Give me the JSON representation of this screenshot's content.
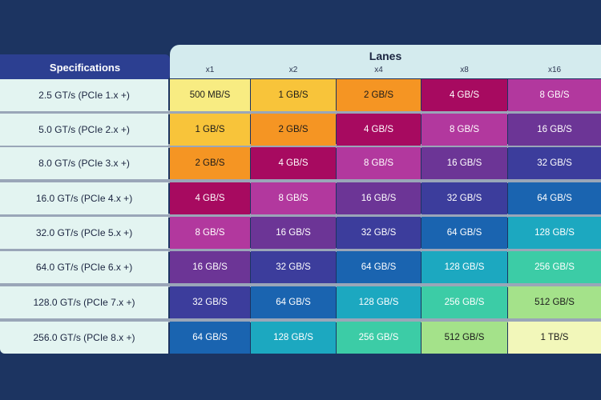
{
  "chart_data": {
    "type": "table",
    "title": "Lanes",
    "row_header": "Specifications",
    "columns": [
      "x1",
      "x2",
      "x4",
      "x8",
      "x16"
    ],
    "rows": [
      {
        "spec": "2.5 GT/s (PCIe 1.x +)",
        "values": [
          "500 MB/S",
          "1 GB/S",
          "2 GB/S",
          "4 GB/S",
          "8 GB/S"
        ]
      },
      {
        "spec": "5.0 GT/s (PCIe 2.x +)",
        "values": [
          "1 GB/S",
          "2 GB/S",
          "4 GB/S",
          "8 GB/S",
          "16 GB/S"
        ]
      },
      {
        "spec": "8.0 GT/s (PCIe 3.x +)",
        "values": [
          "2 GB/S",
          "4 GB/S",
          "8 GB/S",
          "16 GB/S",
          "32 GB/S"
        ]
      },
      {
        "spec": "16.0 GT/s (PCIe 4.x +)",
        "values": [
          "4 GB/S",
          "8 GB/S",
          "16 GB/S",
          "32 GB/S",
          "64 GB/S"
        ]
      },
      {
        "spec": "32.0 GT/s (PCIe 5.x +)",
        "values": [
          "8 GB/S",
          "16 GB/S",
          "32 GB/S",
          "64 GB/S",
          "128 GB/S"
        ]
      },
      {
        "spec": "64.0 GT/s (PCIe 6.x +)",
        "values": [
          "16 GB/S",
          "32 GB/S",
          "64 GB/S",
          "128 GB/S",
          "256 GB/S"
        ]
      },
      {
        "spec": "128.0 GT/s (PCIe 7.x +)",
        "values": [
          "32 GB/S",
          "64 GB/S",
          "128 GB/S",
          "256 GB/S",
          "512 GB/S"
        ]
      },
      {
        "spec": "256.0 GT/s (PCIe 8.x +)",
        "values": [
          "64 GB/S",
          "128 GB/S",
          "256 GB/S",
          "512 GB/S",
          "1 TB/S"
        ]
      }
    ],
    "value_colors": {
      "500 MB/S": "#f8ec82",
      "1 GB/S": "#f8c43a",
      "2 GB/S": "#f59523",
      "4 GB/S": "#a70a60",
      "8 GB/S": "#b2389e",
      "16 GB/S": "#6c3596",
      "32 GB/S": "#3c3d9c",
      "64 GB/S": "#1a64b0",
      "128 GB/S": "#1ca8c0",
      "256 GB/S": "#3ccca6",
      "512 GB/S": "#a4e28a",
      "1 TB/S": "#f2f7ba"
    },
    "dark_text_values": [
      "500 MB/S",
      "1 GB/S",
      "2 GB/S",
      "512 GB/S",
      "1 TB/S"
    ]
  }
}
